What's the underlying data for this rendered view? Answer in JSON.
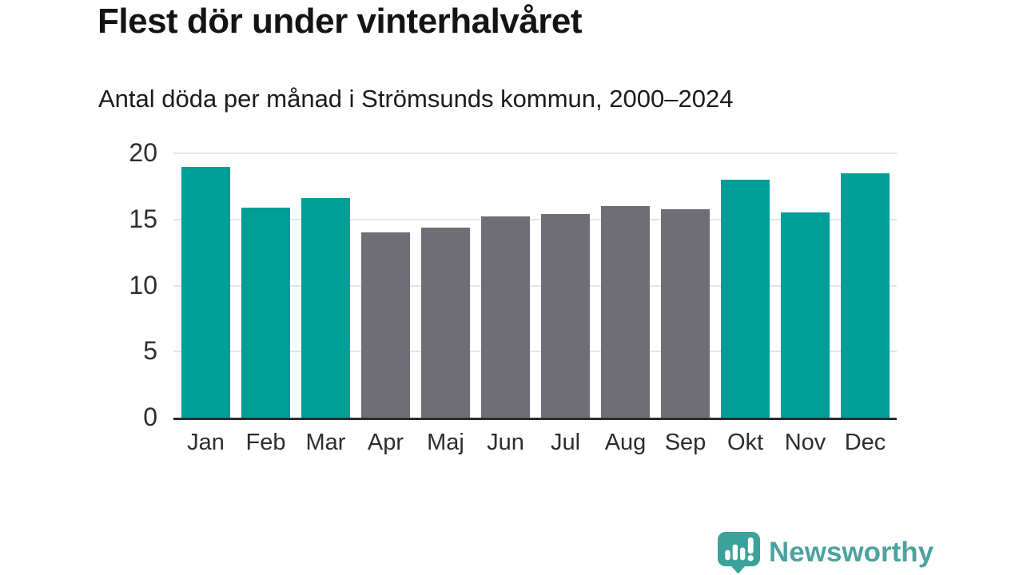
{
  "chart_data": {
    "type": "bar",
    "title": "Flest dör under vinterhalvåret",
    "subtitle": "Antal döda per månad i Strömsunds kommun, 2000–2024",
    "categories": [
      "Jan",
      "Feb",
      "Mar",
      "Apr",
      "Maj",
      "Jun",
      "Jul",
      "Aug",
      "Sep",
      "Okt",
      "Nov",
      "Dec"
    ],
    "values": [
      19.0,
      15.9,
      16.6,
      14.0,
      14.4,
      15.2,
      15.4,
      16.0,
      15.8,
      18.0,
      15.5,
      18.5
    ],
    "bar_color_keys": [
      "teal",
      "teal",
      "teal",
      "gray",
      "gray",
      "gray",
      "gray",
      "gray",
      "gray",
      "teal",
      "teal",
      "teal"
    ],
    "palette": {
      "teal": "#009e97",
      "gray": "#6f6e76"
    },
    "xlabel": "",
    "ylabel": "",
    "ylim": [
      0,
      20
    ],
    "yticks": [
      0,
      5,
      10,
      15,
      20
    ],
    "grid": "horizontal",
    "gridline_color": "#e4e4e4",
    "axis_line_color": "#2d2d2d",
    "legend_position": "none"
  },
  "footer": {
    "brand": "Newsworthy",
    "brand_color": "#4ca29e",
    "logo_icon": "bar-chart-speech-bubble-icon",
    "logo_color": "#3aa19b"
  }
}
